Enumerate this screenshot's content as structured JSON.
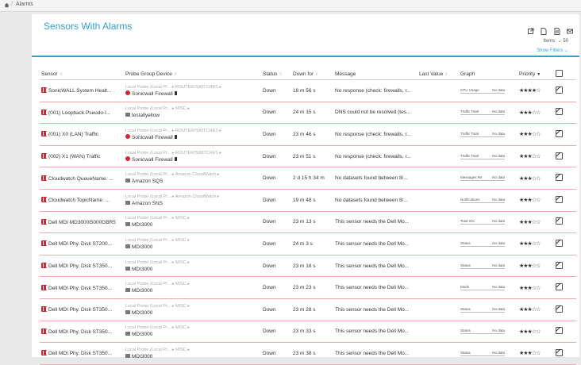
{
  "breadcrumb": {
    "sep": "/",
    "label": "Alarms"
  },
  "page": {
    "title": "Sensors With Alarms",
    "items_label": "Items: ⌄ 50",
    "show_filters": "Show Filters ⌄"
  },
  "header_icons": [
    "external-link-icon",
    "pdf-icon",
    "document-icon",
    "mail-icon"
  ],
  "columns": {
    "sensor": "Sensor",
    "probe": "Probe Group Device",
    "status": "Status",
    "down_for": "Down for",
    "message": "Message",
    "last_value": "Last Value",
    "graph": "Graph",
    "priority": "Priority"
  },
  "rows": [
    {
      "sensor": "SonicWALL System Healt...",
      "probe": "Local Probe (Local Pr...",
      "group": "ROUTER/SWITCHES",
      "device": "Sonicwall Firewall",
      "device_icon": "firewall",
      "flag": true,
      "status": "Down",
      "down": "18 m 56 s",
      "message": "No response (check: firewalls, r...",
      "graph_label": "CPU Usage",
      "graph_value": "No data",
      "priority": "★★★★☆"
    },
    {
      "sensor": "(001) Loopback Pseudo-I...",
      "probe": "Local Probe (Local Pr...",
      "group": "MISC",
      "device": "testallyellow",
      "device_icon": "server",
      "flag": false,
      "status": "Down",
      "down": "24 m 15 s",
      "message": "DNS could not be resolved (tes...",
      "graph_label": "Traffic Total",
      "graph_value": "No data",
      "priority": "★★★☆☆"
    },
    {
      "sensor": "(001) X0 (LAN) Traffic",
      "probe": "Local Probe (Local Pr...",
      "group": "ROUTER/SWITCHES",
      "device": "Sonicwall Firewall",
      "device_icon": "firewall",
      "flag": true,
      "status": "Down",
      "down": "23 m 46 s",
      "message": "No response (check: firewalls, r...",
      "graph_label": "Traffic Total",
      "graph_value": "No data",
      "priority": "★★★☆☆"
    },
    {
      "sensor": "(002) X1 (WAN) Traffic",
      "probe": "Local Probe (Local Pr...",
      "group": "ROUTER/SWITCHES",
      "device": "Sonicwall Firewall",
      "device_icon": "firewall",
      "flag": true,
      "status": "Down",
      "down": "23 m 51 s",
      "message": "No response (check: firewalls, r...",
      "graph_label": "Traffic Total",
      "graph_value": "No data",
      "priority": "★★★☆☆"
    },
    {
      "sensor": "Cloudwatch QueueName: ...",
      "probe": "Local Probe (Local Pr...",
      "group": "Amazon CloudWatch",
      "device": "Amazon SQS",
      "device_icon": "server",
      "flag": false,
      "status": "Down",
      "down": "2 d 15 h 34 m",
      "message": "No datasets found between 8/...",
      "graph_label": "Messages Re",
      "graph_value": "No data",
      "priority": "★★★☆☆"
    },
    {
      "sensor": "Cloudwatch TopicName: ...",
      "probe": "Local Probe (Local Pr...",
      "group": "Amazon CloudWatch",
      "device": "Amazon SNS",
      "device_icon": "server",
      "flag": false,
      "status": "Down",
      "down": "19 m 48 s",
      "message": "No datasets found between 8/...",
      "graph_label": "Notifications",
      "graph_value": "No data",
      "priority": "★★★☆☆"
    },
    {
      "sensor": "Dell MDI MD3000i5000GBR5",
      "probe": "Local Probe (Local Pr...",
      "group": "MISC",
      "device": "MDI3000",
      "device_icon": "server",
      "flag": false,
      "status": "Down",
      "down": "23 m 13 s",
      "message": "This sensor needs the Dell Mo...",
      "graph_label": "Total IOs",
      "graph_value": "No data",
      "priority": "★★★☆☆"
    },
    {
      "sensor": "Dell MDI Phy. Disk ST200...",
      "probe": "Local Probe (Local Pr...",
      "group": "MISC",
      "device": "MDI3000",
      "device_icon": "server",
      "flag": false,
      "status": "Down",
      "down": "24 m 3 s",
      "message": "This sensor needs the Dell Mo...",
      "graph_label": "Status",
      "graph_value": "No data",
      "priority": "★★★☆☆"
    },
    {
      "sensor": "Dell MDI Phy. Disk ST350...",
      "probe": "Local Probe (Local Pr...",
      "group": "MISC",
      "device": "MDI3000",
      "device_icon": "server",
      "flag": false,
      "status": "Down",
      "down": "23 m 18 s",
      "message": "This sensor needs the Dell Mo...",
      "graph_label": "Status",
      "graph_value": "No data",
      "priority": "★★★☆☆"
    },
    {
      "sensor": "Dell MDI Phy. Disk ST350...",
      "probe": "Local Probe (Local Pr...",
      "group": "MISC",
      "device": "MDI3000",
      "device_icon": "server",
      "flag": false,
      "status": "Down",
      "down": "23 m 23 s",
      "message": "This sensor needs the Dell Mo...",
      "graph_label": "Mode",
      "graph_value": "No data",
      "priority": "★★★☆☆"
    },
    {
      "sensor": "Dell MDI Phy. Disk ST350...",
      "probe": "Local Probe (Local Pr...",
      "group": "MISC",
      "device": "MDI3000",
      "device_icon": "server",
      "flag": false,
      "status": "Down",
      "down": "23 m 28 s",
      "message": "This sensor needs the Dell Mo...",
      "graph_label": "Status",
      "graph_value": "No data",
      "priority": "★★★☆☆"
    },
    {
      "sensor": "Dell MDI Phy. Disk ST350...",
      "probe": "Local Probe (Local Pr...",
      "group": "MISC",
      "device": "MDI3000",
      "device_icon": "server",
      "flag": false,
      "status": "Down",
      "down": "23 m 33 s",
      "message": "This sensor needs the Dell Mo...",
      "graph_label": "Status",
      "graph_value": "No data",
      "priority": "★★★☆☆"
    },
    {
      "sensor": "Dell MDI Phy. Disk ST350...",
      "probe": "Local Probe (Local Pr...",
      "group": "MISC",
      "device": "MDI3000",
      "device_icon": "server",
      "flag": false,
      "status": "Down",
      "down": "23 m 38 s",
      "message": "This sensor needs the Dell Mo...",
      "graph_label": "Status",
      "graph_value": "No data",
      "priority": "★★★☆☆"
    }
  ]
}
